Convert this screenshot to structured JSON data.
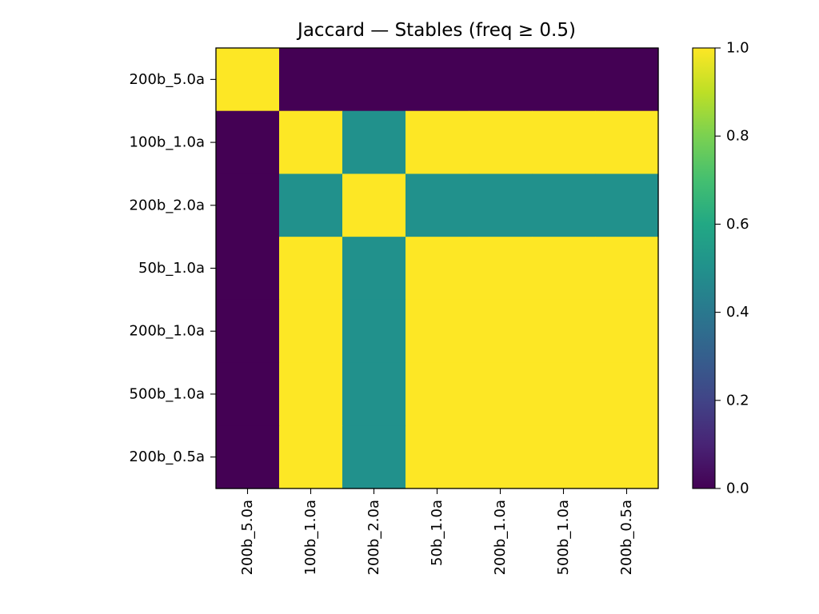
{
  "chart_data": {
    "type": "heatmap",
    "title": "Jaccard — Stables (freq ≥ 0.5)",
    "xlabel": "",
    "ylabel": "",
    "row_labels": [
      "200b_5.0a",
      "100b_1.0a",
      "200b_2.0a",
      "50b_1.0a",
      "200b_1.0a",
      "500b_1.0a",
      "200b_0.5a"
    ],
    "col_labels": [
      "200b_5.0a",
      "100b_1.0a",
      "200b_2.0a",
      "50b_1.0a",
      "200b_1.0a",
      "500b_1.0a",
      "200b_0.5a"
    ],
    "values": [
      [
        1.0,
        0.0,
        0.0,
        0.0,
        0.0,
        0.0,
        0.0
      ],
      [
        0.0,
        1.0,
        0.5,
        1.0,
        1.0,
        1.0,
        1.0
      ],
      [
        0.0,
        0.5,
        1.0,
        0.5,
        0.5,
        0.5,
        0.5
      ],
      [
        0.0,
        1.0,
        0.5,
        1.0,
        1.0,
        1.0,
        1.0
      ],
      [
        0.0,
        1.0,
        0.5,
        1.0,
        1.0,
        1.0,
        1.0
      ],
      [
        0.0,
        1.0,
        0.5,
        1.0,
        1.0,
        1.0,
        1.0
      ],
      [
        0.0,
        1.0,
        0.5,
        1.0,
        1.0,
        1.0,
        1.0
      ]
    ],
    "colormap": "viridis",
    "vmin": 0.0,
    "vmax": 1.0,
    "colorbar_ticks": [
      0.0,
      0.2,
      0.4,
      0.6,
      0.8,
      1.0
    ],
    "colorbar_tick_labels": [
      "0.0",
      "0.2",
      "0.4",
      "0.6",
      "0.8",
      "1.0"
    ],
    "grid": false
  }
}
